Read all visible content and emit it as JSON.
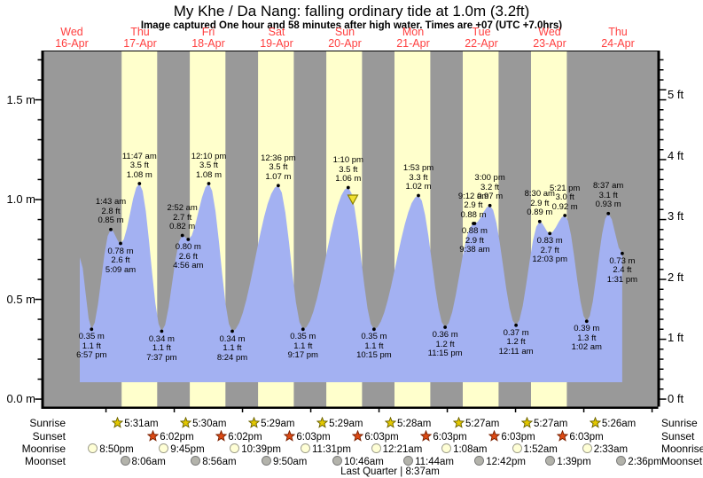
{
  "title": "My Khe / Da Nang: falling  ordinary tide at 1.0m (3.2ft)",
  "subtitle": "Image captured One hour and 58 minutes after high water. Times are +07 (UTC +7.0hrs)",
  "colors": {
    "night_band": "#999999",
    "daylight_band": "#ffffcc",
    "tide_fill": "#a3b1f2",
    "day_label": "#ff4040",
    "axis": "#000000",
    "sunrise_icon_fill": "#e3c800",
    "sunrise_icon_stroke": "#6b6200",
    "sunset_icon_fill": "#dd4a14",
    "sunset_icon_stroke": "#7a2000",
    "moonrise_icon_fill": "#ffffd6",
    "moonrise_icon_stroke": "#999988",
    "moonset_icon_fill": "#b3b3ab",
    "moonset_icon_stroke": "#777777",
    "now_marker_fill": "#f0e030",
    "now_marker_stroke": "#8a8000"
  },
  "days": [
    {
      "dow": "Wed",
      "date": "16-Apr"
    },
    {
      "dow": "Thu",
      "date": "17-Apr"
    },
    {
      "dow": "Fri",
      "date": "18-Apr"
    },
    {
      "dow": "Sat",
      "date": "19-Apr"
    },
    {
      "dow": "Sun",
      "date": "20-Apr"
    },
    {
      "dow": "Mon",
      "date": "21-Apr"
    },
    {
      "dow": "Tue",
      "date": "22-Apr"
    },
    {
      "dow": "Wed",
      "date": "23-Apr"
    },
    {
      "dow": "Thu",
      "date": "24-Apr"
    }
  ],
  "axes": {
    "left": {
      "unit": "m",
      "labels": [
        {
          "text": "1.5 m",
          "value": 1.5
        },
        {
          "text": "1.0 m",
          "value": 1.0
        },
        {
          "text": "0.5 m",
          "value": 0.5
        },
        {
          "text": "0.0 m",
          "value": 0.0
        }
      ]
    },
    "right": {
      "unit": "ft",
      "labels": [
        {
          "text": "5 ft",
          "value": 5
        },
        {
          "text": "4 ft",
          "value": 4
        },
        {
          "text": "3 ft",
          "value": 3
        },
        {
          "text": "2 ft",
          "value": 2
        },
        {
          "text": "1 ft",
          "value": 1
        },
        {
          "text": "0 ft",
          "value": 0
        }
      ]
    }
  },
  "chart_data": {
    "type": "area",
    "title": "My Khe / Da Nang tide height over time",
    "x_unit": "hours since Wed 16-Apr 00:00 (+07)",
    "y_unit": "m",
    "ylim": [
      0,
      1.75
    ],
    "curve_start": {
      "t": 14.8,
      "m": 0.71
    },
    "curve_baseline_m": 0.084,
    "tide_events": [
      {
        "t": 18.95,
        "m": 0.35,
        "m_label": "0.35 m",
        "ft_label": "1.1 ft",
        "time_label": "6:57 pm",
        "kind": "low",
        "label_pos": "below"
      },
      {
        "t": 25.72,
        "m": 0.85,
        "m_label": "0.85 m",
        "ft_label": "2.8 ft",
        "time_label": "1:43 am",
        "kind": "peak",
        "label_pos": "above"
      },
      {
        "t": 29.15,
        "m": 0.78,
        "m_label": "0.78 m",
        "ft_label": "2.6 ft",
        "time_label": "5:09 am",
        "kind": "dip",
        "label_pos": "below"
      },
      {
        "t": 35.78,
        "m": 1.08,
        "m_label": "1.08 m",
        "ft_label": "3.5 ft",
        "time_label": "11:47 am",
        "kind": "high",
        "label_pos": "above"
      },
      {
        "t": 43.62,
        "m": 0.34,
        "m_label": "0.34 m",
        "ft_label": "1.1 ft",
        "time_label": "7:37 pm",
        "kind": "low",
        "label_pos": "below"
      },
      {
        "t": 50.87,
        "m": 0.82,
        "m_label": "0.82 m",
        "ft_label": "2.7 ft",
        "time_label": "2:52 am",
        "kind": "peak",
        "label_pos": "above"
      },
      {
        "t": 52.93,
        "m": 0.8,
        "m_label": "0.80 m",
        "ft_label": "2.6 ft",
        "time_label": "4:56 am",
        "kind": "dip",
        "label_pos": "below"
      },
      {
        "t": 60.17,
        "m": 1.08,
        "m_label": "1.08 m",
        "ft_label": "3.5 ft",
        "time_label": "12:10 pm",
        "kind": "high",
        "label_pos": "above"
      },
      {
        "t": 68.4,
        "m": 0.34,
        "m_label": "0.34 m",
        "ft_label": "1.1 ft",
        "time_label": "8:24 pm",
        "kind": "low",
        "label_pos": "below"
      },
      {
        "t": 84.6,
        "m": 1.07,
        "m_label": "1.07 m",
        "ft_label": "3.5 ft",
        "time_label": "12:36 pm",
        "kind": "high",
        "label_pos": "above"
      },
      {
        "t": 93.28,
        "m": 0.35,
        "m_label": "0.35 m",
        "ft_label": "1.1 ft",
        "time_label": "9:17 pm",
        "kind": "low",
        "label_pos": "below"
      },
      {
        "t": 109.17,
        "m": 1.06,
        "m_label": "1.06 m",
        "ft_label": "3.5 ft",
        "time_label": "1:10 pm",
        "kind": "high",
        "label_pos": "above"
      },
      {
        "t": 118.25,
        "m": 0.35,
        "m_label": "0.35 m",
        "ft_label": "1.1 ft",
        "time_label": "10:15 pm",
        "kind": "low",
        "label_pos": "below"
      },
      {
        "t": 133.88,
        "m": 1.02,
        "m_label": "1.02 m",
        "ft_label": "3.3 ft",
        "time_label": "1:53 pm",
        "kind": "high",
        "label_pos": "above"
      },
      {
        "t": 143.25,
        "m": 0.36,
        "m_label": "0.36 m",
        "ft_label": "1.2 ft",
        "time_label": "11:15 pm",
        "kind": "low",
        "label_pos": "below"
      },
      {
        "t": 153.2,
        "m": 0.88,
        "m_label": "0.88 m",
        "ft_label": "2.9 ft",
        "time_label": "9:12 am",
        "kind": "peak",
        "label_pos": "above"
      },
      {
        "t": 153.63,
        "m": 0.88,
        "m_label": "0.88 m",
        "ft_label": "2.9 ft",
        "time_label": "9:38 am",
        "kind": "dip",
        "label_pos": "below"
      },
      {
        "t": 159.0,
        "m": 0.97,
        "m_label": "0.97 m",
        "ft_label": "3.2 ft",
        "time_label": "3:00 pm",
        "kind": "high",
        "label_pos": "above"
      },
      {
        "t": 168.18,
        "m": 0.37,
        "m_label": "0.37 m",
        "ft_label": "1.2 ft",
        "time_label": "12:11 am",
        "kind": "low",
        "label_pos": "below"
      },
      {
        "t": 176.5,
        "m": 0.89,
        "m_label": "0.89 m",
        "ft_label": "2.9 ft",
        "time_label": "8:30 am",
        "kind": "peak",
        "label_pos": "above"
      },
      {
        "t": 180.05,
        "m": 0.83,
        "m_label": "0.83 m",
        "ft_label": "2.7 ft",
        "time_label": "12:03 pm",
        "kind": "dip",
        "label_pos": "below"
      },
      {
        "t": 185.35,
        "m": 0.92,
        "m_label": "0.92 m",
        "ft_label": "3.0 ft",
        "time_label": "5:21 pm",
        "kind": "high",
        "label_pos": "above"
      },
      {
        "t": 193.03,
        "m": 0.39,
        "m_label": "0.39 m",
        "ft_label": "1.3 ft",
        "time_label": "1:02 am",
        "kind": "low",
        "label_pos": "below"
      },
      {
        "t": 200.62,
        "m": 0.93,
        "m_label": "0.93 m",
        "ft_label": "3.1 ft",
        "time_label": "8:37 am",
        "kind": "high",
        "label_pos": "above"
      },
      {
        "t": 205.52,
        "m": 0.73,
        "m_label": "0.73 m",
        "ft_label": "2.4 ft",
        "time_label": "1:31 pm",
        "kind": "end",
        "label_pos": "below"
      }
    ],
    "now_marker": {
      "t": 110.8,
      "top_m": 1.022,
      "tip_m": 0.978,
      "half_width": 5.5,
      "symbol": "yellow-down-triangle"
    }
  },
  "sun_moon": {
    "rows": [
      {
        "name": "Sunrise",
        "icon": "sunrise-star-icon",
        "entries": [
          {
            "t": 29.52,
            "time": "5:31am"
          },
          {
            "t": 53.5,
            "time": "5:30am"
          },
          {
            "t": 77.48,
            "time": "5:29am"
          },
          {
            "t": 101.48,
            "time": "5:29am"
          },
          {
            "t": 125.47,
            "time": "5:28am"
          },
          {
            "t": 149.45,
            "time": "5:27am"
          },
          {
            "t": 173.45,
            "time": "5:27am"
          },
          {
            "t": 197.43,
            "time": "5:26am"
          }
        ]
      },
      {
        "name": "Sunset",
        "icon": "sunset-star-icon",
        "entries": [
          {
            "t": 42.03,
            "time": "6:02pm"
          },
          {
            "t": 66.03,
            "time": "6:02pm"
          },
          {
            "t": 90.05,
            "time": "6:03pm"
          },
          {
            "t": 114.05,
            "time": "6:03pm"
          },
          {
            "t": 138.05,
            "time": "6:03pm"
          },
          {
            "t": 162.05,
            "time": "6:03pm"
          },
          {
            "t": 186.05,
            "time": "6:03pm"
          }
        ]
      },
      {
        "name": "Moonrise",
        "icon": "moonrise-circle-icon",
        "entries": [
          {
            "t": 20.83,
            "time": "8:50pm"
          },
          {
            "t": 45.75,
            "time": "9:45pm"
          },
          {
            "t": 70.65,
            "time": "10:39pm"
          },
          {
            "t": 95.52,
            "time": "11:31pm"
          },
          {
            "t": 120.35,
            "time": "12:21am"
          },
          {
            "t": 145.13,
            "time": "1:08am"
          },
          {
            "t": 169.87,
            "time": "1:52am"
          },
          {
            "t": 194.55,
            "time": "2:33am"
          }
        ]
      },
      {
        "name": "Moonset",
        "icon": "moonset-circle-icon",
        "entries": [
          {
            "t": 32.1,
            "time": "8:06am"
          },
          {
            "t": 56.93,
            "time": "8:56am"
          },
          {
            "t": 81.83,
            "time": "9:50am"
          },
          {
            "t": 106.77,
            "time": "10:46am"
          },
          {
            "t": 131.73,
            "time": "11:44am"
          },
          {
            "t": 156.7,
            "time": "12:42pm"
          },
          {
            "t": 181.65,
            "time": "1:39pm"
          },
          {
            "t": 206.6,
            "time": "2:36pm"
          }
        ]
      }
    ],
    "footer": "Last Quarter | 8:37am"
  }
}
